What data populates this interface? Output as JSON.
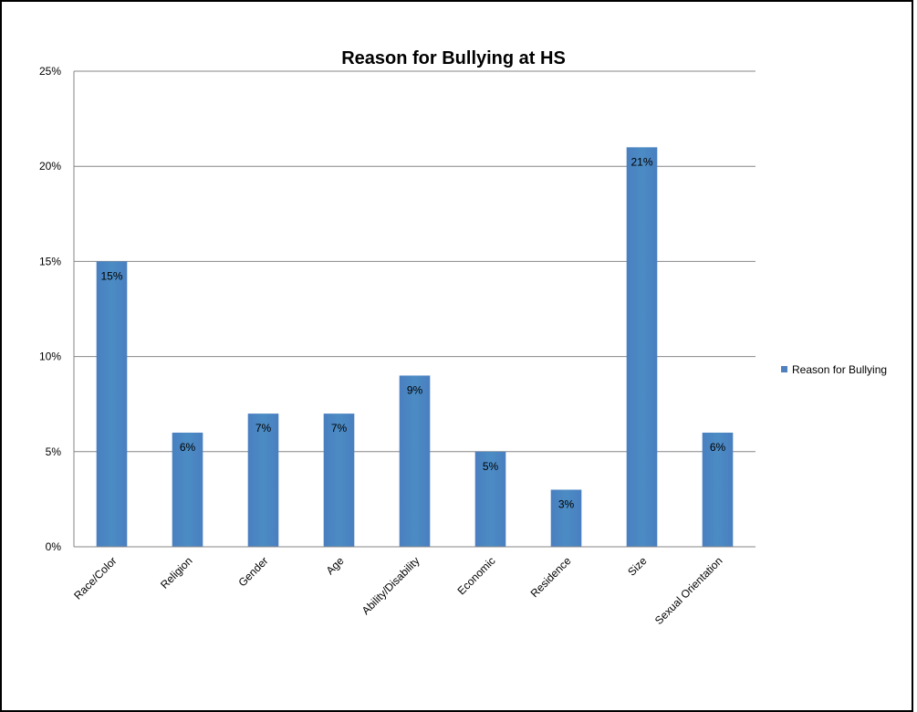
{
  "chart_data": {
    "type": "bar",
    "title": "Reason for Bullying at HS",
    "categories": [
      "Race/Color",
      "Religion",
      "Gender",
      "Age",
      "Ability/Disability",
      "Economic",
      "Residence",
      "Size",
      "Sexual Orientation"
    ],
    "series": [
      {
        "name": "Reason for Bullying",
        "values": [
          15,
          6,
          7,
          7,
          9,
          5,
          3,
          21,
          6
        ],
        "data_labels": [
          "15%",
          "6%",
          "7%",
          "7%",
          "9%",
          "5%",
          "3%",
          "21%",
          "6%"
        ],
        "color": "#4f81bd"
      }
    ],
    "y_ticks": [
      "0%",
      "5%",
      "10%",
      "15%",
      "20%",
      "25%"
    ],
    "ylim": [
      0,
      25
    ],
    "y_unit": "%",
    "grid": true,
    "legend_position": "right"
  }
}
